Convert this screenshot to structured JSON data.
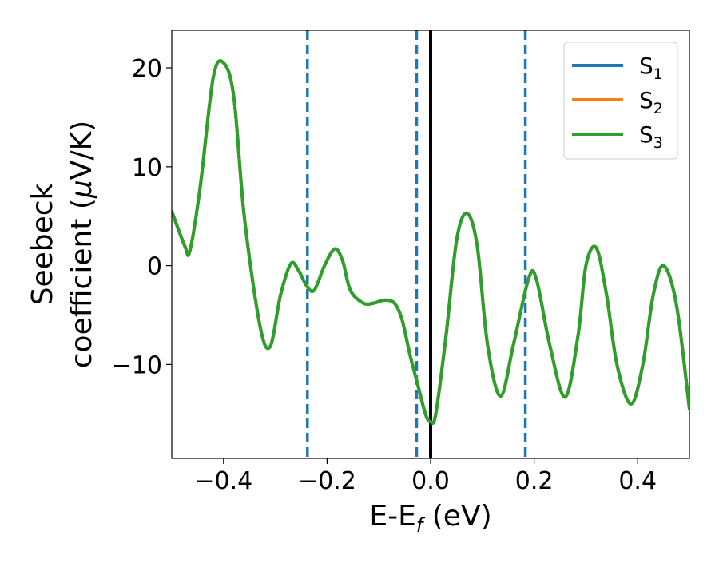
{
  "chart_data": {
    "type": "line",
    "title": "",
    "xlabel_main": "E-E",
    "xlabel_sub": "f",
    "xlabel_unit": " (eV)",
    "ylabel_line1": "Seebeck",
    "ylabel_line2_text": "coefficient  (",
    "ylabel_line2_mu": "μ",
    "ylabel_line2_unit": "V/K)",
    "xlim": [
      -0.5,
      0.5
    ],
    "ylim": [
      -19.5,
      23.8
    ],
    "xticks": [
      -0.4,
      -0.2,
      0.0,
      0.2,
      0.4
    ],
    "xtick_labels": [
      "−0.4",
      "−0.2",
      "0.0",
      "0.2",
      "0.4"
    ],
    "yticks": [
      -10,
      0,
      10,
      20
    ],
    "ytick_labels": [
      "−10",
      "0",
      "10",
      "20"
    ],
    "grid": false,
    "legend_position": "top-right",
    "legend": [
      {
        "label": "S",
        "sub": "1",
        "color": "#1f77b4"
      },
      {
        "label": "S",
        "sub": "2",
        "color": "#ff7f0e"
      },
      {
        "label": "S",
        "sub": "3",
        "color": "#2ca02c"
      }
    ],
    "vlines": [
      {
        "x": -0.238,
        "style": "dashed",
        "color": "#1f77b4"
      },
      {
        "x": -0.027,
        "style": "dashed",
        "color": "#1f77b4"
      },
      {
        "x": 0.0,
        "style": "solid",
        "color": "#000000"
      },
      {
        "x": 0.183,
        "style": "dashed",
        "color": "#1f77b4"
      }
    ],
    "series": [
      {
        "name": "S1",
        "color": "#1f77b4",
        "x": [
          -0.5,
          -0.475,
          -0.465,
          -0.445,
          -0.42,
          -0.4,
          -0.38,
          -0.36,
          -0.33,
          -0.31,
          -0.29,
          -0.27,
          -0.255,
          -0.24,
          -0.225,
          -0.205,
          -0.185,
          -0.17,
          -0.155,
          -0.13,
          -0.11,
          -0.09,
          -0.07,
          -0.055,
          -0.04,
          -0.025,
          -0.01,
          0.0,
          0.01,
          0.03,
          0.05,
          0.07,
          0.09,
          0.11,
          0.135,
          0.16,
          0.19,
          0.205,
          0.23,
          0.26,
          0.285,
          0.3,
          0.32,
          0.34,
          0.36,
          0.387,
          0.41,
          0.43,
          0.45,
          0.475,
          0.5
        ],
        "y": [
          5.5,
          2.0,
          1.5,
          8.0,
          19.0,
          20.5,
          17.0,
          5.0,
          -6.0,
          -8.2,
          -3.0,
          0.2,
          -0.5,
          -2.0,
          -2.5,
          0.0,
          1.7,
          0.5,
          -2.5,
          -3.8,
          -3.8,
          -3.5,
          -3.8,
          -5.5,
          -9.0,
          -12.0,
          -15.0,
          -15.8,
          -15.0,
          -7.0,
          2.5,
          5.3,
          2.0,
          -8.0,
          -13.2,
          -8.0,
          -1.2,
          -1.5,
          -8.0,
          -13.3,
          -7.0,
          0.0,
          1.8,
          -3.0,
          -10.0,
          -14.0,
          -10.0,
          -3.0,
          0.0,
          -4.0,
          -14.5
        ]
      },
      {
        "name": "S2",
        "color": "#ff7f0e",
        "x": [
          -0.5,
          -0.475,
          -0.465,
          -0.445,
          -0.42,
          -0.4,
          -0.38,
          -0.36,
          -0.33,
          -0.31,
          -0.29,
          -0.27,
          -0.255,
          -0.24,
          -0.225,
          -0.205,
          -0.185,
          -0.17,
          -0.155,
          -0.13,
          -0.11,
          -0.09,
          -0.07,
          -0.055,
          -0.04,
          -0.025,
          -0.01,
          0.0,
          0.01,
          0.03,
          0.05,
          0.07,
          0.09,
          0.11,
          0.135,
          0.16,
          0.19,
          0.205,
          0.23,
          0.26,
          0.285,
          0.3,
          0.32,
          0.34,
          0.36,
          0.387,
          0.41,
          0.43,
          0.45,
          0.475,
          0.5
        ],
        "y": [
          5.5,
          2.0,
          1.5,
          8.0,
          19.0,
          20.5,
          17.0,
          5.0,
          -6.0,
          -8.2,
          -3.0,
          0.2,
          -0.5,
          -2.0,
          -2.5,
          0.0,
          1.7,
          0.5,
          -2.5,
          -3.8,
          -3.8,
          -3.5,
          -3.8,
          -5.5,
          -9.0,
          -12.0,
          -15.0,
          -15.8,
          -15.0,
          -7.0,
          2.5,
          5.3,
          2.0,
          -8.0,
          -13.2,
          -8.0,
          -1.2,
          -1.5,
          -8.0,
          -13.3,
          -7.0,
          0.0,
          1.8,
          -3.0,
          -10.0,
          -14.0,
          -10.0,
          -3.0,
          0.0,
          -4.0,
          -14.5
        ]
      },
      {
        "name": "S3",
        "color": "#2ca02c",
        "x": [
          -0.5,
          -0.475,
          -0.465,
          -0.445,
          -0.42,
          -0.4,
          -0.38,
          -0.36,
          -0.33,
          -0.31,
          -0.29,
          -0.27,
          -0.255,
          -0.24,
          -0.225,
          -0.205,
          -0.185,
          -0.17,
          -0.155,
          -0.13,
          -0.11,
          -0.09,
          -0.07,
          -0.055,
          -0.04,
          -0.025,
          -0.01,
          0.0,
          0.01,
          0.03,
          0.05,
          0.07,
          0.09,
          0.11,
          0.135,
          0.16,
          0.19,
          0.205,
          0.23,
          0.26,
          0.285,
          0.3,
          0.32,
          0.34,
          0.36,
          0.387,
          0.41,
          0.43,
          0.45,
          0.475,
          0.5
        ],
        "y": [
          5.5,
          2.0,
          1.5,
          8.0,
          19.0,
          20.5,
          17.0,
          5.0,
          -6.0,
          -8.2,
          -3.0,
          0.2,
          -0.5,
          -2.0,
          -2.5,
          0.0,
          1.7,
          0.5,
          -2.5,
          -3.8,
          -3.8,
          -3.5,
          -3.8,
          -5.5,
          -9.0,
          -12.0,
          -15.0,
          -15.8,
          -15.0,
          -7.0,
          2.5,
          5.3,
          2.0,
          -8.0,
          -13.2,
          -8.0,
          -1.2,
          -1.5,
          -8.0,
          -13.3,
          -7.0,
          0.0,
          1.8,
          -3.0,
          -10.0,
          -14.0,
          -10.0,
          -3.0,
          0.0,
          -4.0,
          -14.5
        ]
      }
    ]
  }
}
